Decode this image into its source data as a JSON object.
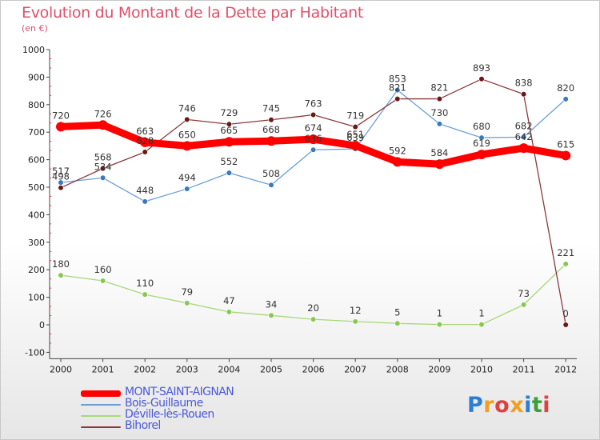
{
  "page": {
    "title": "Evolution du Montant de la Dette par Habitant",
    "unit_label": "(en €)"
  },
  "logo": {
    "text": "Proxiti",
    "letters": [
      {
        "ch": "P",
        "color": "#2a7fd4"
      },
      {
        "ch": "r",
        "color": "#f0a020"
      },
      {
        "ch": "o",
        "color": "#e04040"
      },
      {
        "ch": "x",
        "color": "#f0a020"
      },
      {
        "ch": "i",
        "color": "#2a7fd4"
      },
      {
        "ch": "t",
        "color": "#3aa03a"
      },
      {
        "ch": "i",
        "color": "#e04040"
      }
    ]
  },
  "chart_data": {
    "type": "line",
    "title": "Evolution du Montant de la Dette par Habitant",
    "subtitle": "(en €)",
    "xlabel": "",
    "ylabel": "",
    "x": [
      "2000",
      "2001",
      "2002",
      "2003",
      "2004",
      "2005",
      "2006",
      "2007",
      "2008",
      "2009",
      "2010",
      "2011",
      "2012"
    ],
    "ylim": [
      -100,
      1000
    ],
    "yticks": [
      "-100",
      "0",
      "100",
      "200",
      "300",
      "400",
      "500",
      "600",
      "700",
      "800",
      "900",
      "1000"
    ],
    "grid": false,
    "legend_position": "bottom-left",
    "series": [
      {
        "name": "MONT-SAINT-AIGNAN",
        "color": "#ff0000",
        "style": "thick",
        "values": [
          720,
          726,
          663,
          650,
          665,
          668,
          674,
          651,
          592,
          584,
          619,
          642,
          615
        ],
        "labels": [
          "720",
          "726",
          "663",
          "650",
          "665",
          "668",
          "674",
          "651",
          "592",
          "584",
          "619",
          "642",
          "615"
        ]
      },
      {
        "name": "Bois-Guillaume",
        "color": "#6a9fd8",
        "marker": "#3a78c0",
        "style": "thin",
        "values": [
          517,
          534,
          448,
          494,
          552,
          508,
          636,
          639,
          853,
          730,
          680,
          682,
          820
        ],
        "labels": [
          "517",
          "534",
          "448",
          "494",
          "552",
          "508",
          "636",
          "639",
          "853",
          "730",
          "680",
          "682",
          "820"
        ]
      },
      {
        "name": "Déville-lès-Rouen",
        "color": "#a8d878",
        "marker": "#88c850",
        "style": "thin",
        "values": [
          180,
          160,
          110,
          79,
          47,
          34,
          20,
          12,
          5,
          1,
          1,
          73,
          221
        ],
        "labels": [
          "180",
          "160",
          "110",
          "79",
          "47",
          "34",
          "20",
          "12",
          "5",
          "1",
          "1",
          "73",
          "221"
        ]
      },
      {
        "name": "Bihorel",
        "color": "#8b3a3a",
        "marker": "#6a1818",
        "style": "thin",
        "values": [
          498,
          568,
          628,
          746,
          729,
          745,
          763,
          719,
          821,
          821,
          893,
          838,
          0
        ],
        "labels": [
          "498",
          "568",
          "628",
          "746",
          "729",
          "745",
          "763",
          "719",
          "821",
          "821",
          "893",
          "838",
          "0"
        ]
      }
    ]
  }
}
